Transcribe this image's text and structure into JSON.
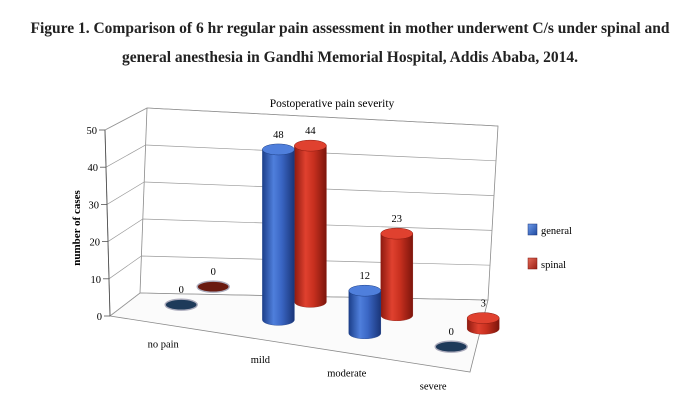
{
  "figure": {
    "caption_line1": "Figure 1. Comparison of 6 hr regular pain assessment in mother underwent C/s under spinal and",
    "caption_line2": "general anesthesia in Gandhi Memorial Hospital, Addis Ababa, 2014."
  },
  "chart_data": {
    "type": "bar",
    "title": "Postoperative pain severity",
    "ylabel": "number of cases",
    "xlabel": "",
    "categories": [
      "no pain",
      "mild",
      "moderate",
      "severe"
    ],
    "series": [
      {
        "name": "general",
        "values": [
          0,
          48,
          12,
          0
        ],
        "color": "#2f5fbf"
      },
      {
        "name": "spinal",
        "values": [
          0,
          44,
          23,
          3
        ],
        "color": "#c8281c"
      }
    ],
    "ylim": [
      0,
      50
    ],
    "yticks": [
      0,
      10,
      20,
      30,
      40,
      50
    ],
    "grid": true,
    "legend": "right",
    "style": "3d-cylinder"
  }
}
